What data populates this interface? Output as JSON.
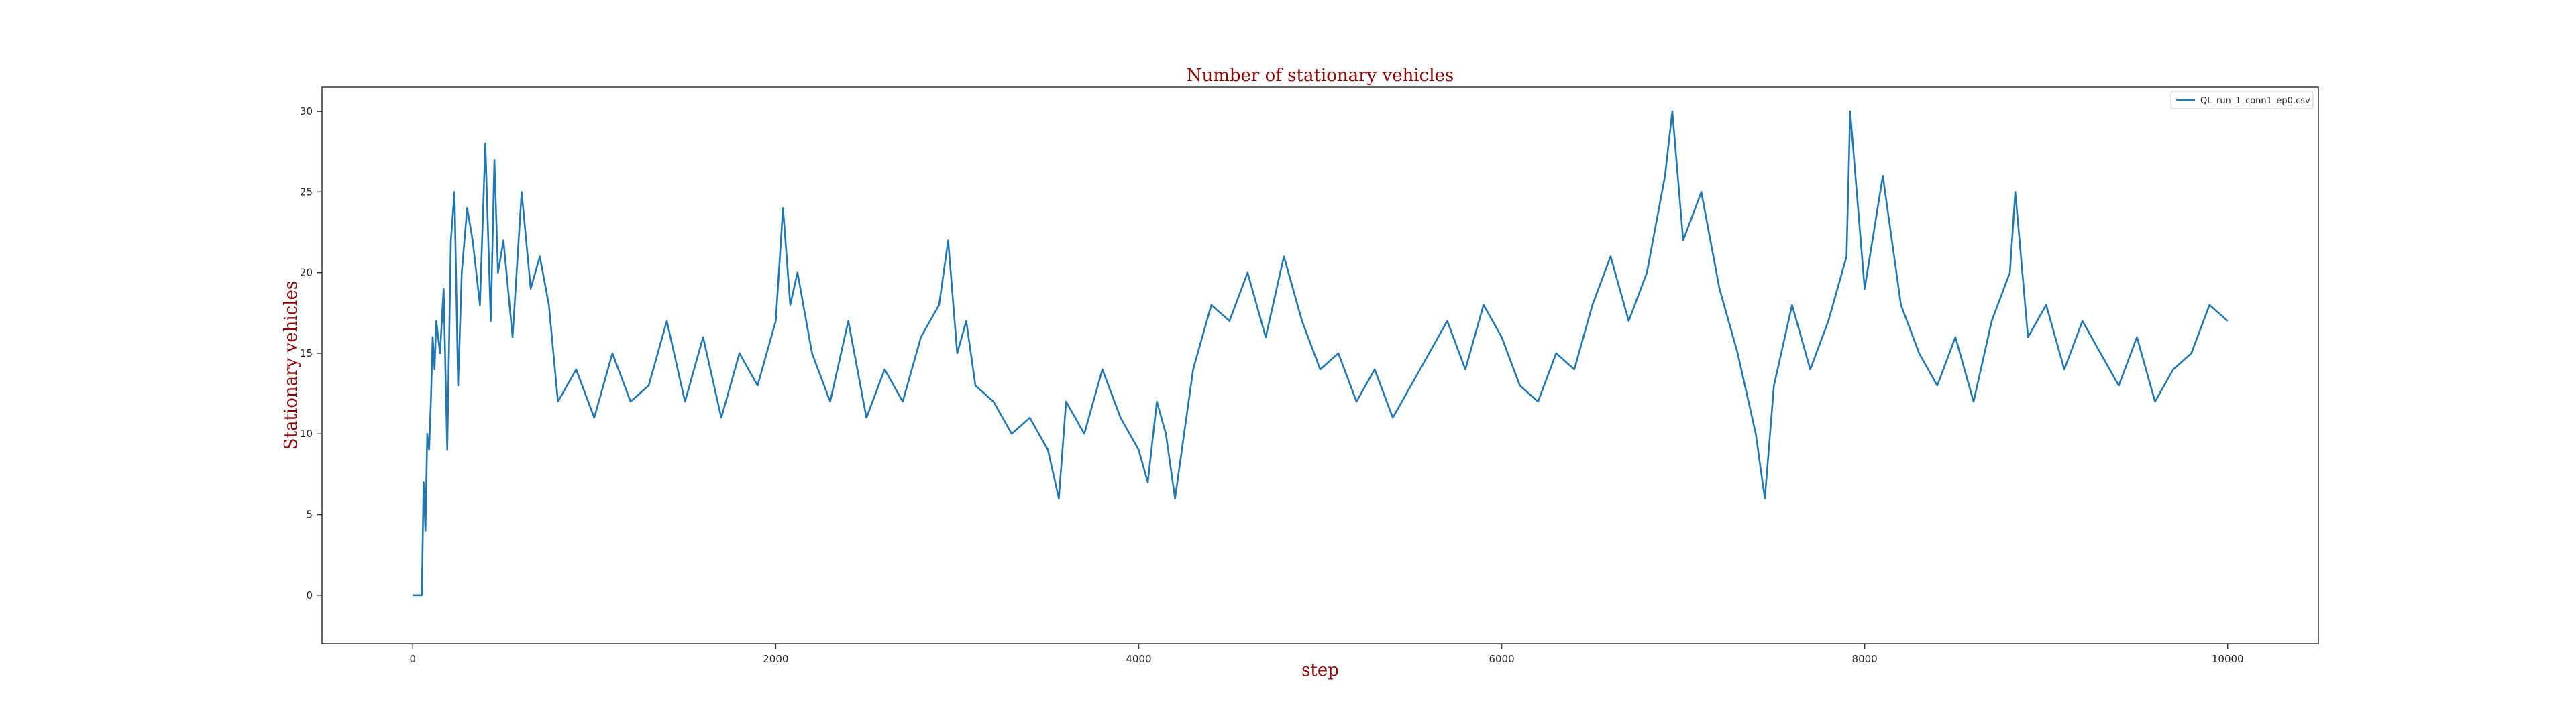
{
  "chart_data": {
    "type": "line",
    "title": "Number of stationary vehicles",
    "xlabel": "step",
    "ylabel": "Stationary vehicles",
    "xlim": [
      -500,
      10500
    ],
    "ylim": [
      -3,
      31.5
    ],
    "xticks": [
      0,
      2000,
      4000,
      6000,
      8000,
      10000
    ],
    "yticks": [
      0,
      5,
      10,
      15,
      20,
      25,
      30
    ],
    "grid": false,
    "legend_position": "top-right",
    "line_color": "#1f77b4",
    "series": [
      {
        "name": "QL_run_1_conn1_ep0.csv",
        "x": [
          0,
          50,
          60,
          70,
          80,
          90,
          100,
          110,
          120,
          130,
          150,
          170,
          190,
          210,
          230,
          250,
          270,
          300,
          330,
          370,
          400,
          430,
          450,
          470,
          500,
          550,
          600,
          650,
          700,
          750,
          800,
          900,
          1000,
          1100,
          1200,
          1300,
          1400,
          1500,
          1600,
          1700,
          1800,
          1900,
          2000,
          2040,
          2080,
          2120,
          2200,
          2300,
          2400,
          2500,
          2600,
          2700,
          2800,
          2900,
          2950,
          3000,
          3050,
          3100,
          3200,
          3300,
          3400,
          3500,
          3560,
          3600,
          3700,
          3800,
          3900,
          4000,
          4050,
          4100,
          4150,
          4200,
          4300,
          4400,
          4500,
          4600,
          4700,
          4800,
          4900,
          5000,
          5100,
          5200,
          5300,
          5400,
          5500,
          5600,
          5700,
          5800,
          5900,
          6000,
          6100,
          6200,
          6300,
          6400,
          6500,
          6600,
          6700,
          6800,
          6900,
          6940,
          7000,
          7100,
          7200,
          7300,
          7400,
          7450,
          7500,
          7600,
          7700,
          7800,
          7900,
          7920,
          8000,
          8100,
          8200,
          8300,
          8400,
          8500,
          8600,
          8700,
          8800,
          8830,
          8900,
          9000,
          9100,
          9200,
          9300,
          9400,
          9500,
          9600,
          9700,
          9800,
          9900,
          10000
        ],
        "y": [
          0,
          0,
          7,
          4,
          10,
          9,
          12,
          16,
          14,
          17,
          15,
          19,
          9,
          22,
          25,
          13,
          20,
          24,
          22,
          18,
          28,
          17,
          27,
          20,
          22,
          16,
          25,
          19,
          21,
          18,
          12,
          14,
          11,
          15,
          12,
          13,
          17,
          12,
          16,
          11,
          15,
          13,
          17,
          24,
          18,
          20,
          15,
          12,
          17,
          11,
          14,
          12,
          16,
          18,
          22,
          15,
          17,
          13,
          12,
          10,
          11,
          9,
          6,
          12,
          10,
          14,
          11,
          9,
          7,
          12,
          10,
          6,
          14,
          18,
          17,
          20,
          16,
          21,
          17,
          14,
          15,
          12,
          14,
          11,
          13,
          15,
          17,
          14,
          18,
          16,
          13,
          12,
          15,
          14,
          18,
          21,
          17,
          20,
          26,
          30,
          22,
          25,
          19,
          15,
          10,
          6,
          13,
          18,
          14,
          17,
          21,
          30,
          19,
          26,
          18,
          15,
          13,
          16,
          12,
          17,
          20,
          25,
          16,
          18,
          14,
          17,
          15,
          13,
          16,
          12,
          14,
          15,
          18,
          17
        ]
      }
    ]
  }
}
